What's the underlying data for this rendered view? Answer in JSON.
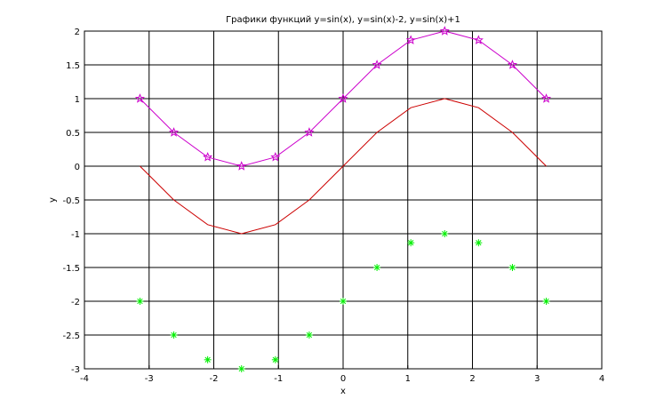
{
  "chart_data": {
    "type": "line",
    "title": "Графики функций y=sin(x),  y=sin(x)-2,  y=sin(x)+1",
    "xlabel": "x",
    "ylabel": "y",
    "xlim": [
      -4,
      4
    ],
    "ylim": [
      -3,
      2
    ],
    "grid": true,
    "xticks": [
      "-4",
      "-3",
      "-2",
      "-1",
      "0",
      "1",
      "2",
      "3",
      "4"
    ],
    "yticks": [
      "2",
      "1.5",
      "1",
      "0.5",
      "0",
      "-0.5",
      "-1",
      "-1.5",
      "-2",
      "-2.5",
      "-3"
    ],
    "x": [
      -3.1416,
      -2.618,
      -2.0944,
      -1.5708,
      -1.0472,
      -0.5236,
      0,
      0.5236,
      1.0472,
      1.5708,
      2.0944,
      2.618,
      3.1416
    ],
    "series": [
      {
        "function": "y=sin(x)",
        "color": "#cc0000",
        "style": "line",
        "values": [
          0,
          -0.5,
          -0.866,
          -1,
          -0.866,
          -0.5,
          0,
          0.5,
          0.866,
          1,
          0.866,
          0.5,
          0
        ]
      },
      {
        "function": "y=sin(x)-2",
        "color": "#00ee00",
        "style": "markers-asterisk",
        "values": [
          -2,
          -2.5,
          -2.866,
          -3,
          -2.866,
          -2.5,
          -2,
          -1.5,
          -1.134,
          -1,
          -1.134,
          -1.5,
          -2
        ]
      },
      {
        "function": "y=sin(x)+1",
        "color": "#cc00cc",
        "style": "line-with-star-markers",
        "values": [
          1,
          0.5,
          0.134,
          0,
          0.134,
          0.5,
          1,
          1.5,
          1.866,
          2,
          1.866,
          1.5,
          1
        ]
      }
    ]
  }
}
